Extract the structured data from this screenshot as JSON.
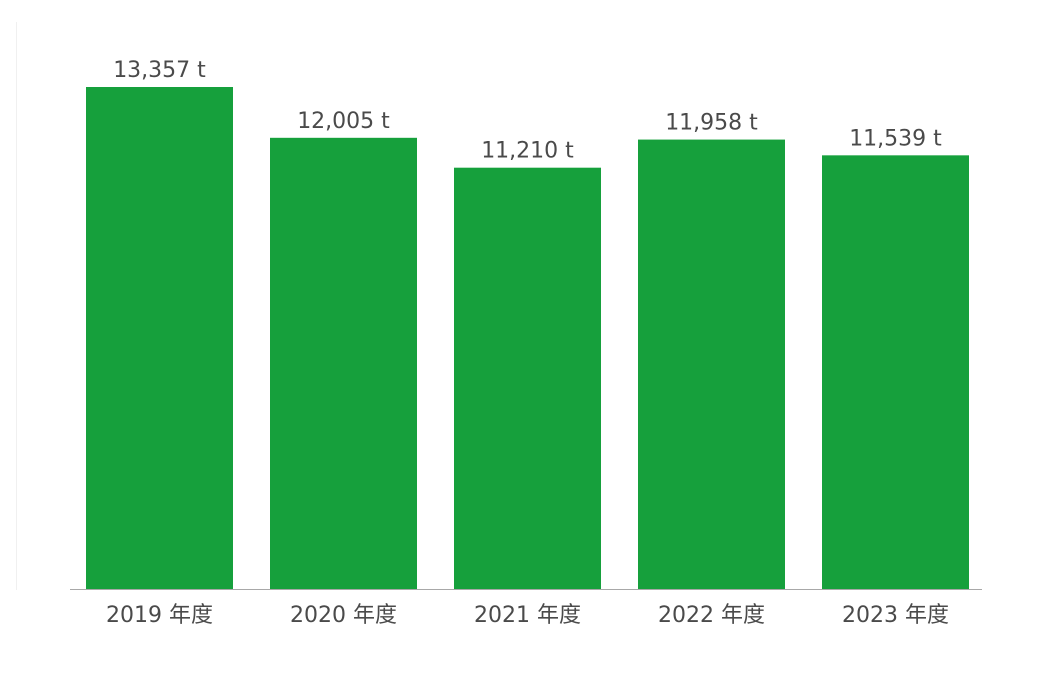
{
  "chart_data": {
    "type": "bar",
    "categories": [
      "2019 年度",
      "2020 年度",
      "2021 年度",
      "2022 年度",
      "2023 年度"
    ],
    "values": [
      13357,
      12005,
      11210,
      11958,
      11539
    ],
    "data_labels": [
      "13,357 t",
      "12,005 t",
      "11,210 t",
      "11,958 t",
      "11,539 t"
    ],
    "unit": "t",
    "title": "",
    "xlabel": "",
    "ylabel": "",
    "ylim": [
      0,
      14000
    ],
    "grid": false,
    "legend": "none",
    "bar_color": "#16a03c",
    "axis_color": "#a8a8a8",
    "text_color": "#4a4a4a"
  }
}
